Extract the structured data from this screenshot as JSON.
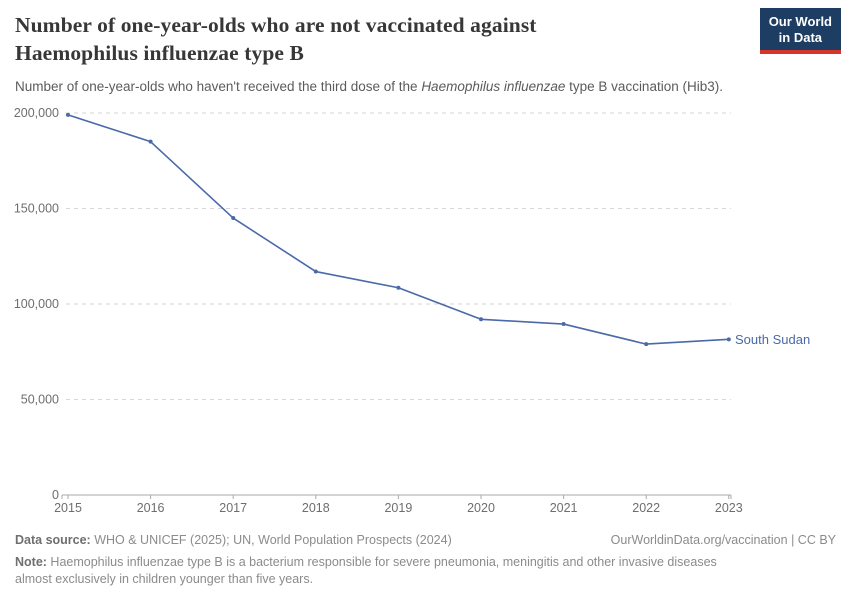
{
  "header": {
    "title_lines": [
      "Number of one-year-olds who are not vaccinated against",
      "Haemophilus influenzae type B"
    ],
    "subtitle_prefix": "Number of one-year-olds who haven't received the third dose of the ",
    "subtitle_italic": "Haemophilus influenzae",
    "subtitle_suffix": " type B vaccination (Hib3).",
    "logo_line1": "Our World",
    "logo_line2": "in Data"
  },
  "chart_data": {
    "type": "line",
    "title": "Number of one-year-olds who are not vaccinated against Haemophilus influenzae type B",
    "x": [
      2015,
      2016,
      2017,
      2018,
      2019,
      2020,
      2021,
      2022,
      2023
    ],
    "xtick_labels": [
      "2015",
      "2016",
      "2017",
      "2018",
      "2019",
      "2020",
      "2021",
      "2022",
      "2023"
    ],
    "series": [
      {
        "name": "South Sudan",
        "color": "#4a69a8",
        "values": [
          199000,
          185000,
          145000,
          117000,
          108500,
          92000,
          89500,
          79000,
          81500
        ]
      }
    ],
    "xlabel": "",
    "ylabel": "",
    "ylim": [
      0,
      200000
    ],
    "yticks": [
      0,
      50000,
      100000,
      150000,
      200000
    ],
    "ytick_labels": [
      "0",
      "50,000",
      "100,000",
      "150,000",
      "200,000"
    ],
    "grid": "horizontal-dashed",
    "legend": "end-of-line-label",
    "end_label": "South Sudan"
  },
  "footer": {
    "source_label": "Data source:",
    "source_text": " WHO & UNICEF (2025); UN, World Population Prospects (2024)",
    "link": "OurWorldinData.org/vaccination",
    "separator": " | ",
    "license": "CC BY",
    "note_label": "Note:",
    "note_text": " Haemophilus influenzae type B is a bacterium responsible for severe pneumonia, meningitis and other invasive diseases almost exclusively in children younger than five years."
  },
  "colors": {
    "line": "#4a69a8",
    "logo_bg": "#1d3d63",
    "logo_accent": "#d7352a",
    "grid": "#d6d6d6",
    "axis": "#a9a9a9",
    "axis_text": "#6e6e6e"
  }
}
